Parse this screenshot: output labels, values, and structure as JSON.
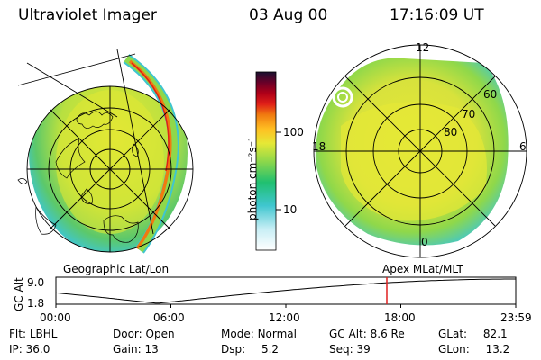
{
  "header": {
    "instrument": "Ultraviolet Imager",
    "date": "03 Aug 00",
    "time": "17:16:09 UT"
  },
  "colors": {
    "palette": [
      "#ffffff",
      "#c7eef5",
      "#3fc6cf",
      "#20c070",
      "#8fd84a",
      "#e6e836",
      "#ffbf22",
      "#f07a10",
      "#e02018",
      "#b00018",
      "#6a0028",
      "#1a1030"
    ],
    "marker": "#e02020"
  },
  "geo_panel": {
    "label": "Geographic Lat/Lon"
  },
  "colorbar": {
    "ticks": [
      "100",
      "10"
    ],
    "label": "photon cm⁻²s⁻¹"
  },
  "apex_panel": {
    "label": "Apex MLat/MLT",
    "mlt": {
      "top": "12",
      "left": "18",
      "right": "6",
      "bottom": "0"
    },
    "mlat": [
      "60",
      "70",
      "80"
    ]
  },
  "altitude_plot": {
    "ylabel": "GC Alt",
    "yticks": [
      "9.0",
      "1.8"
    ],
    "xticks": [
      "00:00",
      "06:00",
      "12:00",
      "18:00",
      "23:59"
    ],
    "marker_hour": 17.27
  },
  "footer": {
    "row1": [
      {
        "label": "Flt:",
        "value": "LBHL"
      },
      {
        "label": "Door:",
        "value": "Open"
      },
      {
        "label": "Mode:",
        "value": "Normal"
      },
      {
        "label": "GC Alt:",
        "value": "8.6 Re"
      },
      {
        "label": "GLat:",
        "value": "82.1"
      }
    ],
    "row2": [
      {
        "label": "IP:",
        "value": "36.0"
      },
      {
        "label": "Gain:",
        "value": "13"
      },
      {
        "label": "Dsp:",
        "value": "5.2"
      },
      {
        "label": "Seq:",
        "value": "39"
      },
      {
        "label": "GLon:",
        "value": "13.2"
      }
    ]
  }
}
